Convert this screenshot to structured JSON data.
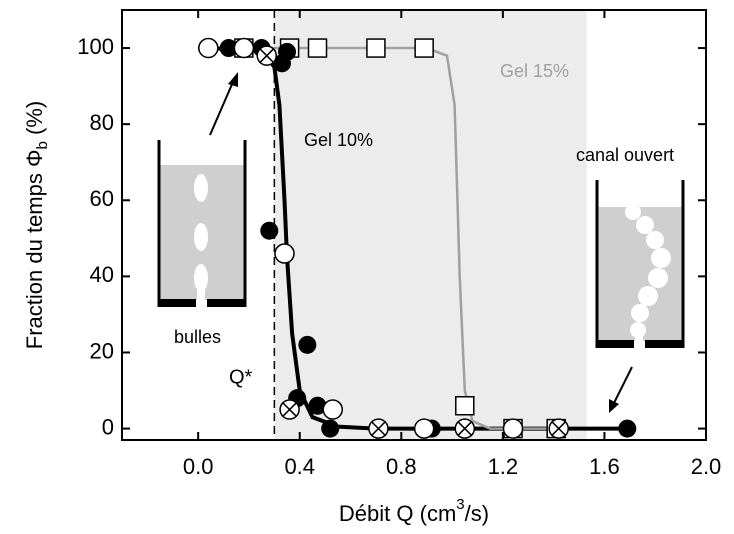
{
  "chart_data": {
    "type": "scatter",
    "xlabel": {
      "text": "Débit Q (cm",
      "sup": "3",
      "after": "/s)"
    },
    "ylabel": {
      "text": "Fraction du temps  Φ",
      "sub": "b",
      "after": " (%)"
    },
    "xlim": [
      -0.3,
      2.0
    ],
    "ylim": [
      -3,
      110
    ],
    "xticks": [
      {
        "value": 0,
        "label": "0.0"
      },
      0.4,
      0.8,
      1.2,
      1.6,
      {
        "value": 2,
        "label": "2.0"
      }
    ],
    "yticks": [
      0,
      20,
      40,
      60,
      80,
      100
    ],
    "shaded_region": [
      0.3,
      1.53
    ],
    "shade_color": "#ececec",
    "qstar_line": 0.3,
    "annotations": {
      "gel10": "Gel 10%",
      "gel15": "Gel 15%",
      "canal": "canal ouvert",
      "bulles": "bulles",
      "qstar": "Q*"
    },
    "curves": [
      {
        "color": "#000000",
        "x": [
          0.0,
          0.25,
          0.3,
          0.32,
          0.34,
          0.35,
          0.37,
          0.4,
          0.45,
          0.55,
          0.7,
          1.68
        ],
        "y": [
          100,
          99.5,
          95,
          85,
          60,
          45,
          25,
          10,
          3,
          0.5,
          0,
          0
        ]
      },
      {
        "color": "#a0a0a0",
        "x": [
          0.2,
          0.9,
          0.98,
          1.01,
          1.03,
          1.05,
          1.08,
          1.15,
          1.45
        ],
        "y": [
          100,
          100,
          98,
          85,
          40,
          10,
          2,
          0,
          0
        ]
      }
    ],
    "series": [
      {
        "marker": "square",
        "x": [
          0.18,
          0.36,
          0.47,
          0.7,
          0.89,
          1.05,
          1.24,
          1.41
        ],
        "values": [
          100,
          100,
          100,
          100,
          100,
          6,
          0,
          0
        ]
      },
      {
        "marker": "filled",
        "x": [
          0.12,
          0.25,
          0.33,
          0.35,
          0.28,
          0.43,
          0.39,
          0.47,
          0.52,
          0.92,
          1.69
        ],
        "values": [
          100,
          100,
          96,
          99,
          52,
          22,
          8,
          6,
          0,
          0,
          0
        ]
      },
      {
        "marker": "open",
        "x": [
          0.04,
          0.18,
          0.34,
          0.53,
          0.89,
          1.24
        ],
        "values": [
          100,
          100,
          46,
          5,
          0,
          0
        ]
      },
      {
        "marker": "crossed",
        "x": [
          0.27,
          0.36,
          0.71,
          1.05,
          1.42
        ],
        "values": [
          98,
          5,
          0,
          0,
          0
        ]
      }
    ]
  }
}
